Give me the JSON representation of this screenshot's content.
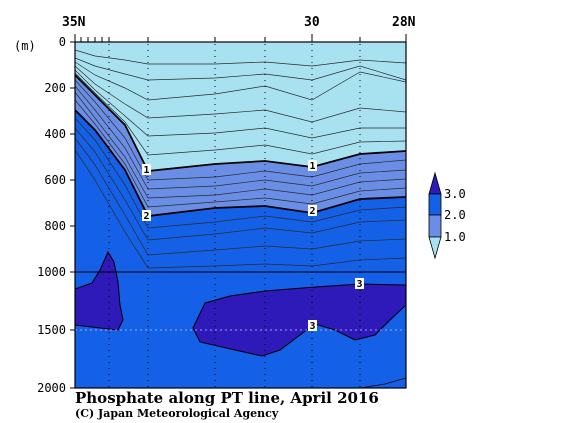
{
  "chart_data": {
    "type": "heatmap",
    "title": "Phosphate along PT line, April 2016",
    "credit": "(C) Japan Meteorological Agency",
    "ylabel": "(m)",
    "x_ticks": [
      "35N",
      "30",
      "28N"
    ],
    "y_ticks": [
      "0",
      "200",
      "400",
      "600",
      "800",
      "1000",
      "1500",
      "2000"
    ],
    "ylim": [
      0,
      2000
    ],
    "y_break": "linear 0–1000 m, compressed 1000–2000 m",
    "levels": [
      1.0,
      2.0,
      3.0
    ],
    "legend": {
      "labels": [
        "3.0",
        "2.0",
        "1.0"
      ],
      "colors": [
        "#2e1ab8",
        "#1460e6",
        "#6a8ee6",
        "#a8e2f0"
      ]
    },
    "colors": {
      "lt1": "#a8e2f0",
      "b1_2": "#6a8ee6",
      "b2_3": "#1460e6",
      "gt3": "#2e1ab8"
    },
    "contour_labels": [
      "1",
      "1",
      "2",
      "2",
      "3",
      "3"
    ]
  }
}
